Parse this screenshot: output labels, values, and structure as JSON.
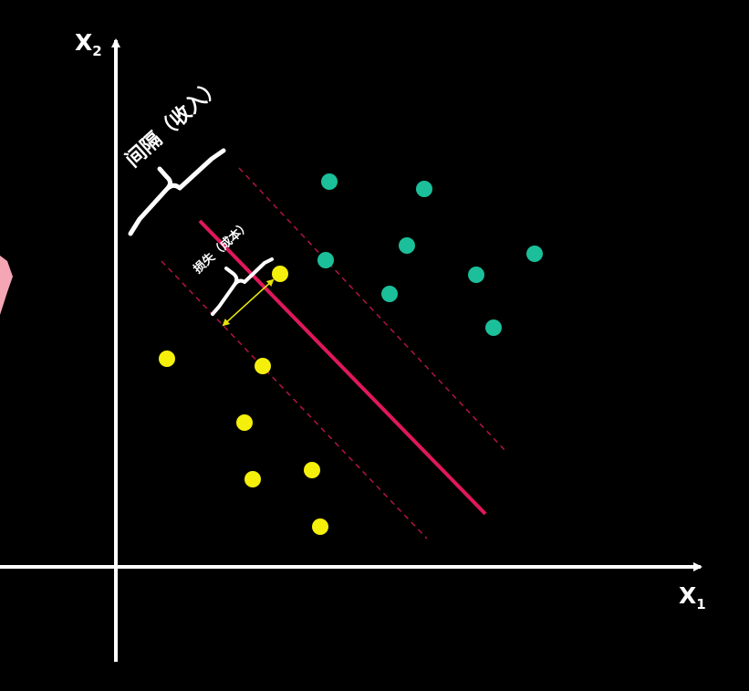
{
  "axes": {
    "x_label": "X",
    "x_subscript": "1",
    "y_label": "X",
    "y_subscript": "2"
  },
  "annotations": {
    "margin_label": "间隔（收入）",
    "loss_label": "损失（成本）"
  },
  "colors": {
    "background": "#000000",
    "axis": "#ffffff",
    "hyperplane": "#e0185a",
    "margin_line": "#b0163e",
    "class_positive": "#1bbf9a",
    "class_negative": "#f5ef0c",
    "loss_arrow": "#e6e30c",
    "side_mark": "#f4a6b4"
  },
  "icons": {
    "side_mark": "x-mark-icon"
  }
}
